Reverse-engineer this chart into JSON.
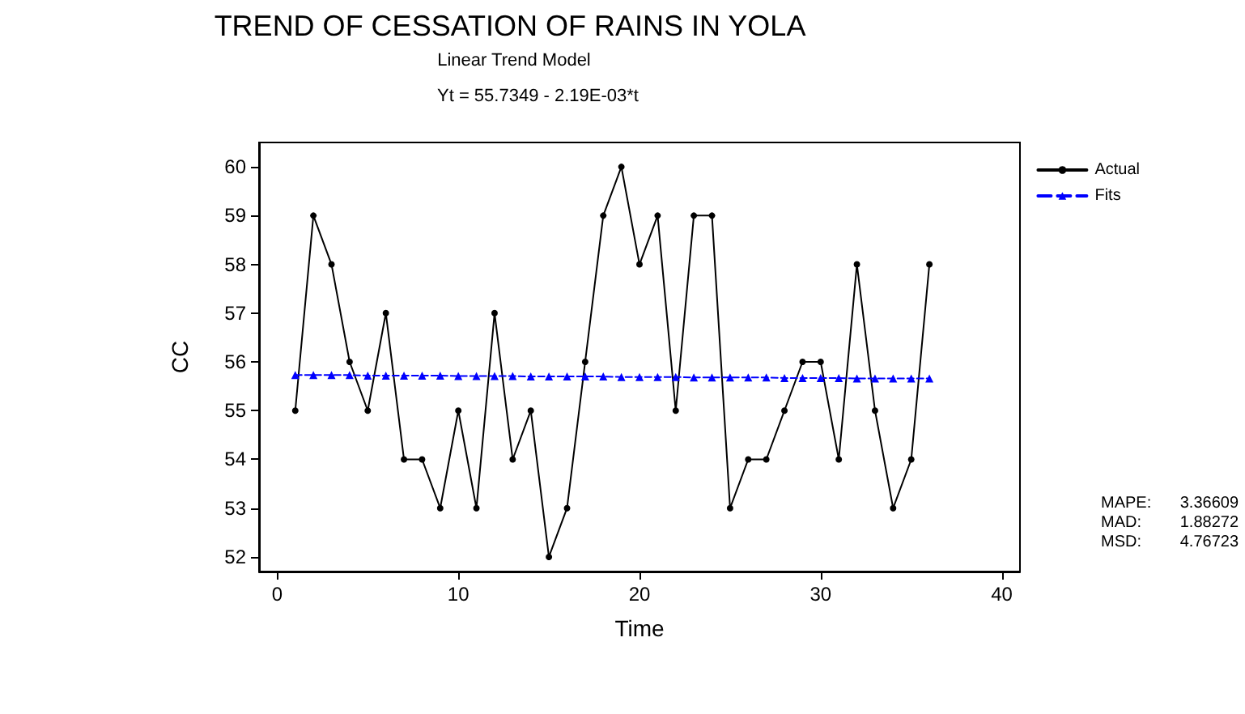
{
  "chart_data": {
    "type": "line",
    "title": "TREND OF CESSATION OF RAINS IN YOLA",
    "subtitle": "Linear Trend Model\nYt = 55.7349 - 2.19E-03*t",
    "xlabel": "Time",
    "ylabel": "CC",
    "x": [
      1,
      2,
      3,
      4,
      5,
      6,
      7,
      8,
      9,
      10,
      11,
      12,
      13,
      14,
      15,
      16,
      17,
      18,
      19,
      20,
      21,
      22,
      23,
      24,
      25,
      26,
      27,
      28,
      29,
      30,
      31,
      32,
      33,
      34,
      35,
      36
    ],
    "series": [
      {
        "name": "Actual",
        "color": "#000000",
        "marker": "circle",
        "line_style": "solid",
        "values": [
          55,
          59,
          58,
          56,
          55,
          57,
          54,
          54,
          53,
          55,
          53,
          57,
          54,
          55,
          52,
          53,
          56,
          59,
          60,
          58,
          59,
          55,
          59,
          59,
          53,
          54,
          54,
          55,
          56,
          56,
          54,
          58,
          55,
          53,
          54,
          58
        ]
      },
      {
        "name": "Fits",
        "color": "#0000ff",
        "marker": "triangle",
        "line_style": "dashed",
        "values": [
          55.73,
          55.73,
          55.73,
          55.73,
          55.72,
          55.72,
          55.72,
          55.72,
          55.72,
          55.71,
          55.71,
          55.71,
          55.71,
          55.7,
          55.7,
          55.7,
          55.7,
          55.7,
          55.69,
          55.69,
          55.69,
          55.69,
          55.68,
          55.68,
          55.68,
          55.68,
          55.68,
          55.67,
          55.67,
          55.67,
          55.67,
          55.66,
          55.66,
          55.66,
          55.66,
          55.66
        ]
      }
    ],
    "xlim": [
      -1,
      41
    ],
    "xticks": [
      0,
      10,
      20,
      30,
      40
    ],
    "ylim": [
      51.7,
      60.5
    ],
    "yticks": [
      52,
      53,
      54,
      55,
      56,
      57,
      58,
      59,
      60
    ],
    "grid": false,
    "legend": "top right",
    "annotations": [
      "MAPE: 3.36609",
      "MAD: 1.88272",
      "MSD: 4.76723"
    ]
  }
}
